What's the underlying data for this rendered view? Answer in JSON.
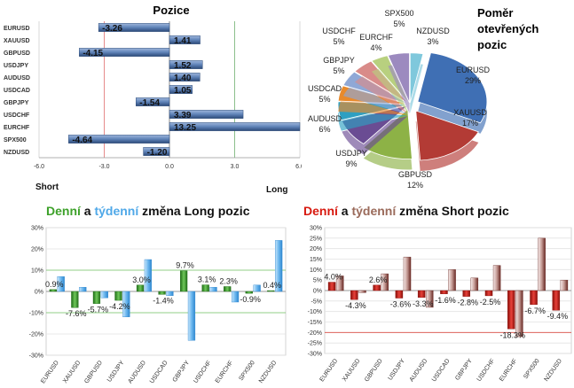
{
  "colors": {
    "bar_blue": "#5f83b8",
    "bar_blue_dark": "#2c4a78",
    "green": "#3da12a",
    "blue_light": "#4fa8e8",
    "red": "#c3241c",
    "brown": "#9a6a5a",
    "short_red": "#d7190f",
    "long_green": "#31a53a"
  },
  "chart_data": [
    {
      "type": "bar",
      "title": "Pozice",
      "orientation": "horizontal",
      "categories": [
        "EURUSD",
        "XAUUSD",
        "GBPUSD",
        "USDJPY",
        "AUDUSD",
        "USDCAD",
        "GBPJPY",
        "USDCHF",
        "EURCHF",
        "SPX500",
        "NZDUSD"
      ],
      "values": [
        -3.26,
        1.41,
        -4.15,
        1.52,
        1.4,
        1.05,
        -1.54,
        3.39,
        13.25,
        -4.64,
        -1.2
      ],
      "value_labels": [
        "-3.26",
        "1.41",
        "-4.15",
        "1.52",
        "1.40",
        "1.05",
        "-1.54",
        "3.39",
        "13.25",
        "-4.64",
        "-1.20"
      ],
      "xlim": [
        -6.0,
        6.0
      ],
      "x_ticks": [
        "-6.0",
        "-3.0",
        "0.0",
        "3.0",
        "6.0"
      ],
      "x_tick_values": [
        -6,
        -3,
        0,
        3,
        6
      ],
      "short_label": "Short",
      "long_label": "Long"
    },
    {
      "type": "pie",
      "title": [
        "Poměr",
        "otevřených",
        "pozic"
      ],
      "slices": [
        {
          "name": "EURUSD",
          "value": 29,
          "label": "29%",
          "color": "#3f6fb4"
        },
        {
          "name": "XAUUSD",
          "value": 17,
          "label": "17%",
          "color": "#b33b35"
        },
        {
          "name": "GBPUSD",
          "value": 12,
          "label": "12%",
          "color": "#8db246"
        },
        {
          "name": "USDJPY",
          "value": 9,
          "label": "9%",
          "color": "#6a4c93"
        },
        {
          "name": "AUDUSD",
          "value": 6,
          "label": "6%",
          "color": "#2e9fc1"
        },
        {
          "name": "USDCAD",
          "value": 5,
          "label": "5%",
          "color": "#e88a2c"
        },
        {
          "name": "GBPJPY",
          "value": 5,
          "label": "5%",
          "color": "#8fa8d6"
        },
        {
          "name": "USDCHF",
          "value": 5,
          "label": "5%",
          "color": "#d98b89"
        },
        {
          "name": "EURCHF",
          "value": 4,
          "label": "4%",
          "color": "#b8d07f"
        },
        {
          "name": "SPX500",
          "value": 5,
          "label": "5%",
          "color": "#9c8abf"
        },
        {
          "name": "NZDUSD",
          "value": 3,
          "label": "3%",
          "color": "#7fc8dc"
        }
      ]
    },
    {
      "type": "bar",
      "title_parts": [
        "Denní",
        " a ",
        "týdenní",
        " změna Long pozic"
      ],
      "categories": [
        "EURUSD",
        "XAUUSD",
        "GBPUSD",
        "USDJPY",
        "AUDUSD",
        "USDCAD",
        "GBPJPY",
        "USDCHF",
        "EURCHF",
        "SPX500",
        "NZDUSD"
      ],
      "series": [
        {
          "values": [
            0.9,
            -7.6,
            -5.7,
            -4.2,
            3.0,
            -1.4,
            9.7,
            3.1,
            2.3,
            -0.9,
            0.4
          ]
        },
        {
          "values": [
            7.0,
            2.0,
            -3.0,
            -12.0,
            15.0,
            -2.0,
            -23.0,
            2.0,
            -5.0,
            3.0,
            24.0
          ]
        }
      ],
      "data_labels": [
        "0.9%",
        "-7.6%",
        "-5.7%",
        "-4.2%",
        "3.0%",
        "-1.4%",
        "9.7%",
        "3.1%",
        "2.3%",
        "-0.9%",
        "0.4%"
      ],
      "ylim": [
        -30,
        30
      ],
      "y_ticks": [
        "30%",
        "20%",
        "10%",
        "0%",
        "-10%",
        "-20%",
        "-30%"
      ],
      "y_tick_values": [
        30,
        20,
        10,
        0,
        -10,
        -20,
        -30
      ]
    },
    {
      "type": "bar",
      "title_parts": [
        "Denní",
        " a ",
        "týdenní",
        " změna Short pozic"
      ],
      "categories": [
        "EURUSD",
        "XAUUSD",
        "GBPUSD",
        "USDJPY",
        "AUDUSD",
        "USDCAD",
        "GBPJPY",
        "USDCHF",
        "EURCHF",
        "SPX500",
        "NZDUSD"
      ],
      "series": [
        {
          "values": [
            4.0,
            -4.3,
            2.6,
            -3.6,
            -3.3,
            -1.6,
            -2.8,
            -2.5,
            -18.3,
            -6.7,
            -9.4
          ]
        },
        {
          "values": [
            7.0,
            -1.0,
            8.0,
            16.0,
            -8.0,
            10.0,
            6.0,
            12.0,
            -22.0,
            25.0,
            5.0
          ]
        }
      ],
      "data_labels": [
        "4.0%",
        "-4.3%",
        "2.6%",
        "-3.6%",
        "-3.3%",
        "-1.6%",
        "-2.8%",
        "-2.5%",
        "-18.3%",
        "-6.7%",
        "-9.4%"
      ],
      "ylim": [
        -30,
        30
      ],
      "y_ticks": [
        "30%",
        "25%",
        "20%",
        "15%",
        "10%",
        "5%",
        "0%",
        "-5%",
        "-10%",
        "-15%",
        "-20%",
        "-25%",
        "-30%"
      ],
      "y_tick_values": [
        30,
        25,
        20,
        15,
        10,
        5,
        0,
        -5,
        -10,
        -15,
        -20,
        -25,
        -30
      ]
    }
  ]
}
